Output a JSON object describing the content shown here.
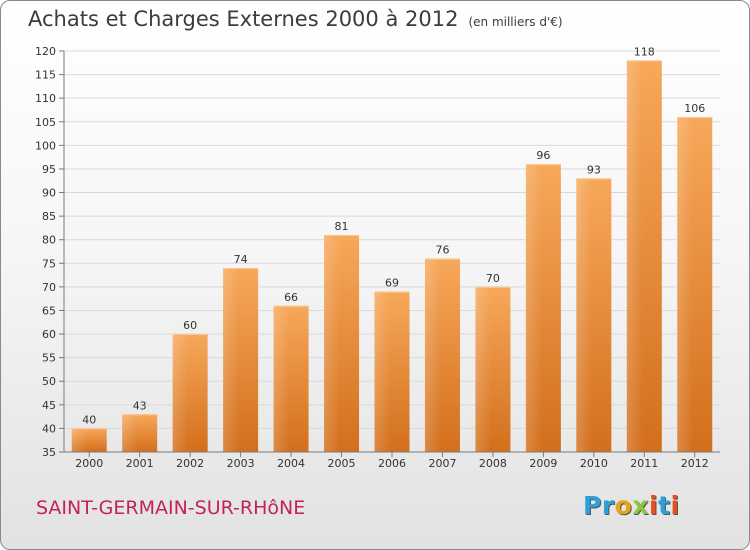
{
  "header": {
    "title": "Achats et Charges Externes 2000 à 2012",
    "subtitle": "(en milliers d'€)"
  },
  "footer": {
    "commune": "SAINT-GERMAIN-SUR-RHôNE",
    "logo_letters": [
      {
        "char": "P",
        "color": "#2b9fd8"
      },
      {
        "char": "r",
        "color": "#2b9fd8"
      },
      {
        "char": "o",
        "color": "#e8a317"
      },
      {
        "char": "x",
        "color": "#8cc63f"
      },
      {
        "char": "i",
        "color": "#e94e1b"
      },
      {
        "char": "t",
        "color": "#2b9fd8"
      },
      {
        "char": "i",
        "color": "#e94e1b"
      }
    ]
  },
  "chart_data": {
    "type": "bar",
    "categories": [
      "2000",
      "2001",
      "2002",
      "2003",
      "2004",
      "2005",
      "2006",
      "2007",
      "2008",
      "2009",
      "2010",
      "2011",
      "2012"
    ],
    "values": [
      40,
      43,
      60,
      74,
      66,
      81,
      69,
      76,
      70,
      96,
      93,
      118,
      106
    ],
    "title": "Achats et Charges Externes 2000 à 2012",
    "xlabel": "",
    "ylabel": "",
    "ylim": [
      35,
      120
    ],
    "yticks": [
      35,
      40,
      45,
      50,
      55,
      60,
      65,
      70,
      75,
      80,
      85,
      90,
      95,
      100,
      105,
      110,
      115,
      120
    ],
    "grid": true,
    "legend": "none",
    "colors": {
      "bar_light": "#f7a85a",
      "bar_dark": "#d36f1c",
      "grid": "#d9d9d9",
      "axis": "#7a7a7a"
    }
  }
}
